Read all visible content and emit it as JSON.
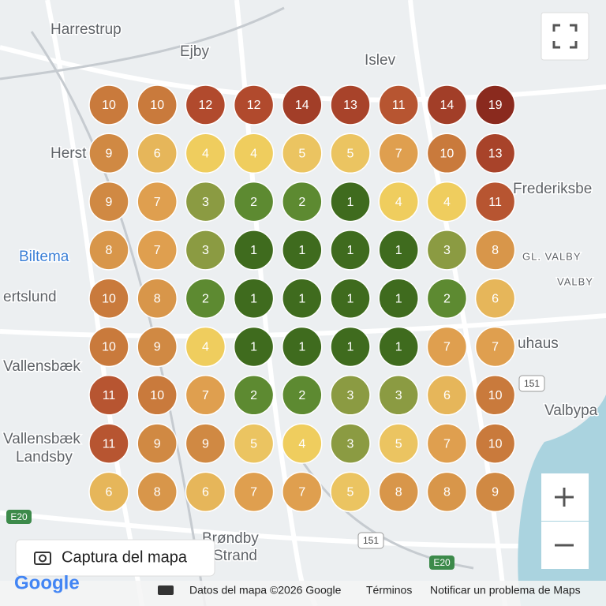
{
  "map_labels": [
    "Harrestrup",
    "Ejby",
    "Islev",
    "Herst",
    "Frederiksbe",
    "Biltema",
    "GL. VALBY",
    "VALBY",
    "ertslund",
    "Vallensbæk",
    "uhaus",
    "Valbypa",
    "Vallensbæk",
    "Landsby",
    "Brøndby",
    "Strand"
  ],
  "road_badges": [
    "151",
    "151",
    "E20",
    "E20"
  ],
  "grid": {
    "rows": [
      [
        10,
        10,
        12,
        12,
        14,
        13,
        11,
        14,
        19
      ],
      [
        9,
        6,
        4,
        4,
        5,
        5,
        7,
        10,
        13
      ],
      [
        9,
        7,
        3,
        2,
        2,
        1,
        4,
        4,
        11
      ],
      [
        8,
        7,
        3,
        1,
        1,
        1,
        1,
        3,
        8
      ],
      [
        10,
        8,
        2,
        1,
        1,
        1,
        1,
        2,
        6
      ],
      [
        10,
        9,
        4,
        1,
        1,
        1,
        1,
        7,
        7
      ],
      [
        11,
        10,
        7,
        2,
        2,
        3,
        3,
        6,
        10
      ],
      [
        11,
        9,
        9,
        5,
        4,
        3,
        5,
        7,
        10
      ],
      [
        6,
        8,
        6,
        7,
        7,
        5,
        8,
        8,
        9
      ]
    ]
  },
  "controls": {
    "capture": "Captura del mapa"
  },
  "footer": {
    "logo": "Google",
    "map_data": "Datos del mapa ©2026 Google",
    "terms": "Términos",
    "report": "Notificar un problema de Maps"
  }
}
